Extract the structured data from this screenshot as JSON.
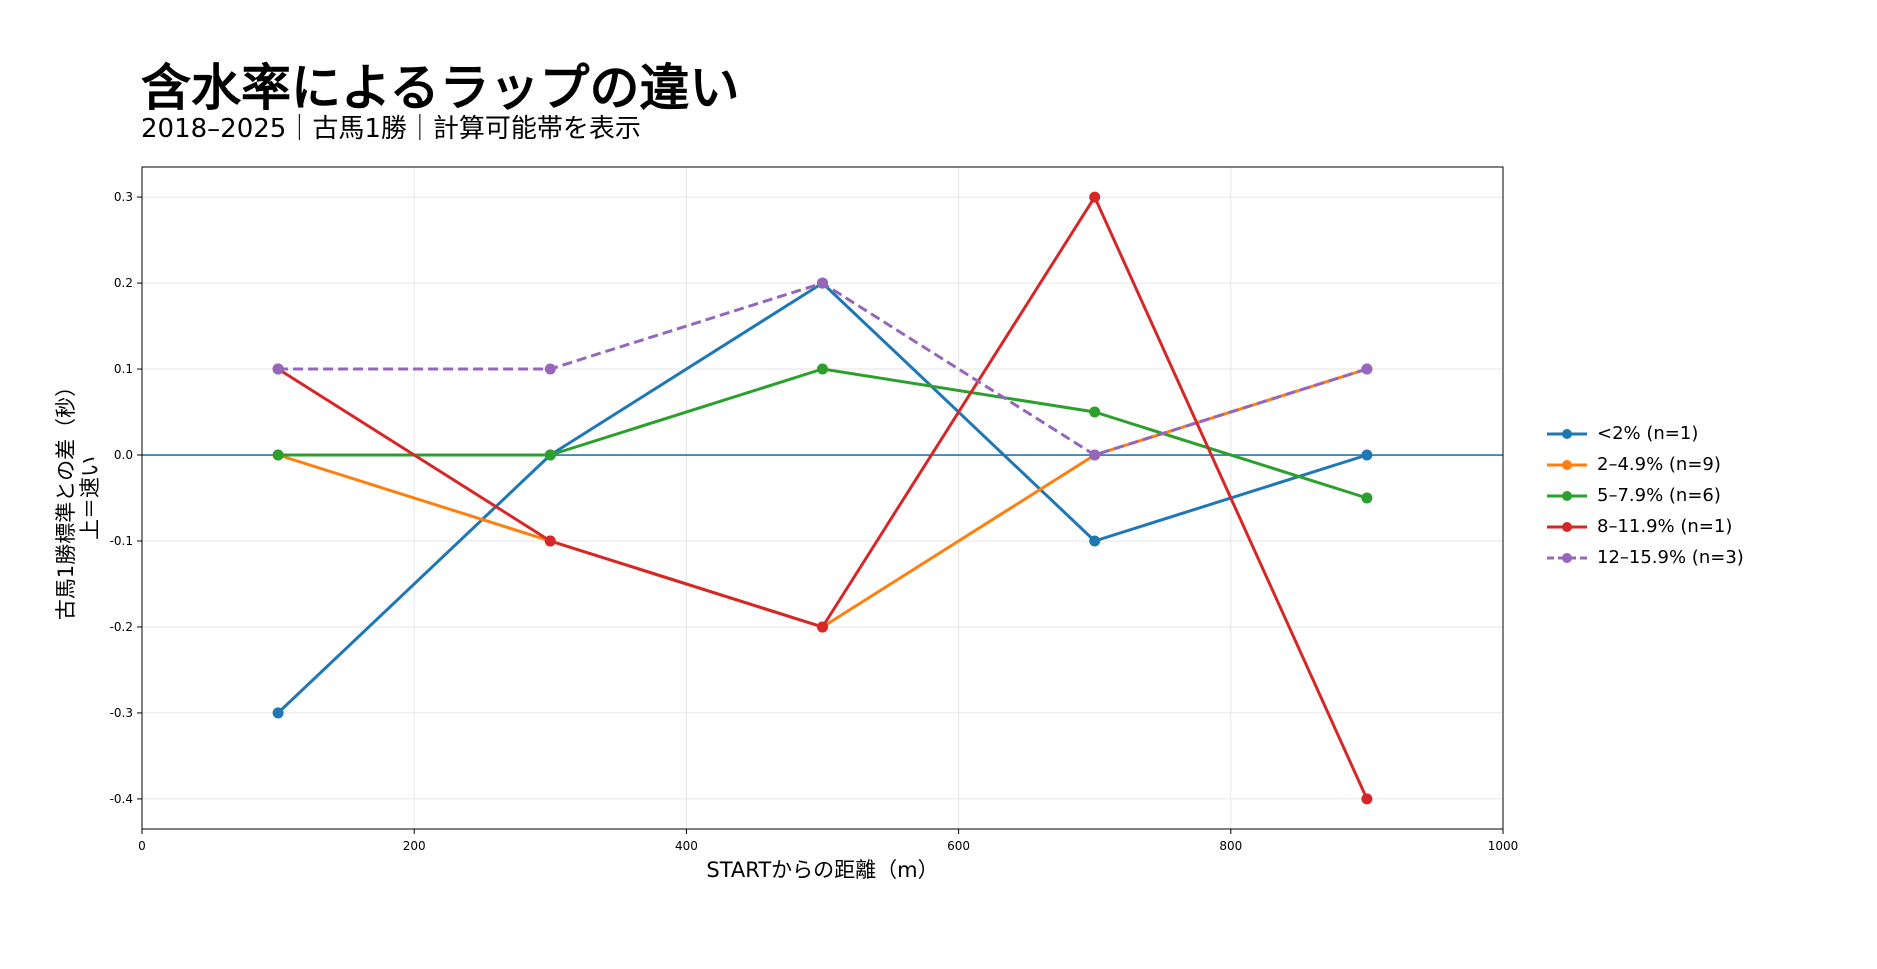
{
  "title": "含水率によるラップの違い",
  "subtitle": "2018–2025｜古馬1勝｜計算可能帯を表示",
  "chart_data": {
    "type": "line",
    "title": "含水率によるラップの違い",
    "subtitle": "2018–2025｜古馬1勝｜計算可能帯を表示",
    "xlabel": "STARTからの距離（m）",
    "ylabel_lines": [
      "古馬1勝標準との差（秒）",
      "上＝速い"
    ],
    "xlim": [
      0,
      1000
    ],
    "ylim": [
      -0.435,
      0.335
    ],
    "xticks": [
      0,
      200,
      400,
      600,
      800,
      1000
    ],
    "yticks": [
      0.3,
      0.2,
      0.1,
      0.0,
      -0.1,
      -0.2,
      -0.3,
      -0.4
    ],
    "ytick_labels": [
      "0.3",
      "0.2",
      "0.1",
      "0.0",
      "-0.1",
      "-0.2",
      "-0.3",
      "-0.4"
    ],
    "grid": true,
    "reference_line": {
      "y": 0.0,
      "color": "#1f77b4"
    },
    "legend_position": "right",
    "x": [
      100,
      300,
      500,
      700,
      900
    ],
    "series": [
      {
        "name": "<2% (n=1)",
        "color": "#1f77b4",
        "dashed": false,
        "values": [
          -0.3,
          0.0,
          0.2,
          -0.1,
          0.0
        ]
      },
      {
        "name": "2–4.9% (n=9)",
        "color": "#ff7f0e",
        "dashed": false,
        "values": [
          0.0,
          -0.1,
          -0.2,
          0.0,
          0.1
        ]
      },
      {
        "name": "5–7.9% (n=6)",
        "color": "#2ca02c",
        "dashed": false,
        "values": [
          0.0,
          0.0,
          0.1,
          0.05,
          -0.05
        ]
      },
      {
        "name": "8–11.9% (n=1)",
        "color": "#d62728",
        "dashed": false,
        "values": [
          0.1,
          -0.1,
          -0.2,
          0.3,
          -0.4
        ]
      },
      {
        "name": "12–15.9% (n=3)",
        "color": "#9467bd",
        "dashed": true,
        "values": [
          0.1,
          0.1,
          0.2,
          0.0,
          0.1
        ]
      }
    ]
  }
}
